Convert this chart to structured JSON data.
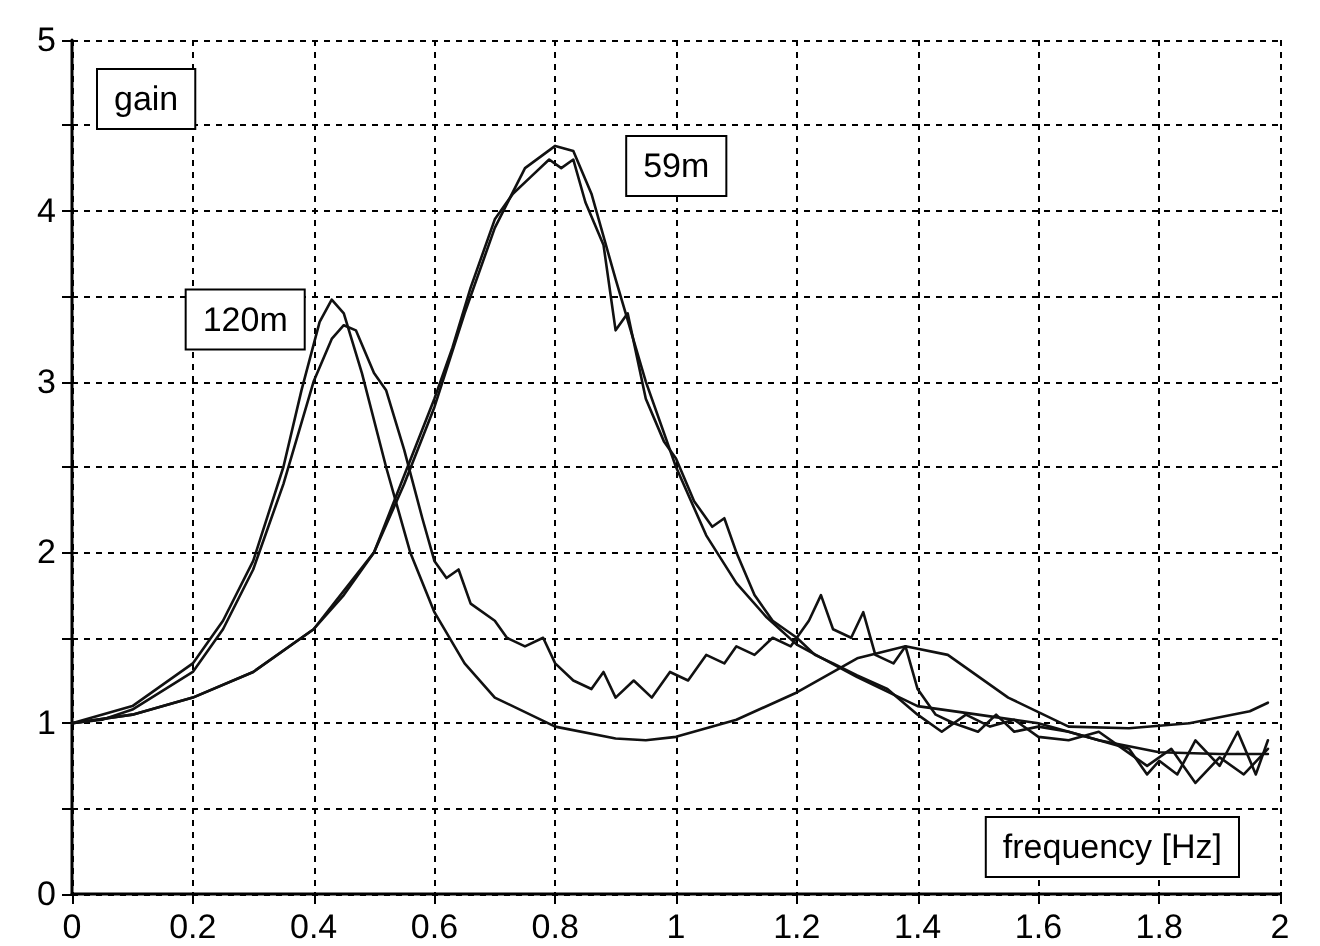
{
  "chart_data": {
    "type": "line",
    "xlabel": "frequency [Hz]",
    "ylabel": "gain",
    "xlim": [
      0,
      2
    ],
    "ylim": [
      0,
      5
    ],
    "xticks": [
      0,
      0.2,
      0.4,
      0.6,
      0.8,
      1,
      1.2,
      1.4,
      1.6,
      1.8,
      2
    ],
    "yticks": [
      0,
      {
        "value": 0.5,
        "label": null
      },
      1,
      {
        "value": 1.5,
        "label": null
      },
      2,
      {
        "value": 2.5,
        "label": null
      },
      3,
      {
        "value": 3.5,
        "label": null
      },
      4,
      {
        "value": 4.5,
        "label": null
      },
      5
    ],
    "grid": true,
    "marker": "none",
    "line_style": "solid",
    "annotations": [
      {
        "text": "120m",
        "x": 0.43,
        "y": 3.48
      },
      {
        "text": "59m",
        "x": 0.8,
        "y": 4.38
      }
    ],
    "series": [
      {
        "color": "#111111",
        "x": [
          0,
          0.1,
          0.2,
          0.25,
          0.3,
          0.35,
          0.38,
          0.41,
          0.43,
          0.45,
          0.48,
          0.52,
          0.56,
          0.6,
          0.65,
          0.7,
          0.8,
          0.9,
          0.95,
          1.0,
          1.1,
          1.2,
          1.3,
          1.38,
          1.45,
          1.55,
          1.65,
          1.75,
          1.85,
          1.95,
          1.98
        ],
        "values": [
          1.0,
          1.1,
          1.35,
          1.6,
          1.95,
          2.5,
          2.95,
          3.35,
          3.48,
          3.4,
          3.05,
          2.5,
          2.0,
          1.65,
          1.35,
          1.15,
          0.98,
          0.91,
          0.9,
          0.92,
          1.02,
          1.18,
          1.38,
          1.45,
          1.4,
          1.15,
          0.98,
          0.97,
          1.0,
          1.07,
          1.12
        ]
      },
      {
        "color": "#111111",
        "x": [
          0,
          0.05,
          0.1,
          0.2,
          0.25,
          0.3,
          0.35,
          0.4,
          0.43,
          0.45,
          0.47,
          0.5,
          0.52,
          0.55,
          0.58,
          0.6,
          0.62,
          0.64,
          0.66,
          0.7,
          0.72,
          0.75,
          0.78,
          0.8,
          0.83,
          0.86,
          0.88,
          0.9,
          0.93,
          0.96,
          0.99,
          1.02,
          1.05,
          1.08,
          1.1,
          1.13,
          1.16,
          1.19,
          1.22,
          1.24,
          1.26,
          1.29,
          1.31,
          1.33,
          1.36,
          1.38,
          1.4,
          1.43,
          1.46,
          1.5,
          1.53,
          1.56,
          1.6,
          1.65,
          1.7,
          1.75,
          1.78,
          1.8,
          1.83,
          1.86,
          1.9,
          1.93,
          1.96,
          1.98
        ],
        "values": [
          1.0,
          1.02,
          1.08,
          1.3,
          1.55,
          1.9,
          2.4,
          3.0,
          3.25,
          3.33,
          3.3,
          3.05,
          2.95,
          2.6,
          2.2,
          1.95,
          1.85,
          1.9,
          1.7,
          1.6,
          1.5,
          1.45,
          1.5,
          1.35,
          1.25,
          1.2,
          1.3,
          1.15,
          1.25,
          1.15,
          1.3,
          1.25,
          1.4,
          1.35,
          1.45,
          1.4,
          1.5,
          1.45,
          1.6,
          1.75,
          1.55,
          1.5,
          1.65,
          1.4,
          1.35,
          1.45,
          1.2,
          1.05,
          1.0,
          0.95,
          1.05,
          0.95,
          0.98,
          0.95,
          0.9,
          0.85,
          0.7,
          0.78,
          0.7,
          0.9,
          0.75,
          0.95,
          0.7,
          0.9
        ]
      },
      {
        "color": "#111111",
        "x": [
          0,
          0.1,
          0.2,
          0.3,
          0.4,
          0.45,
          0.5,
          0.55,
          0.6,
          0.65,
          0.7,
          0.75,
          0.8,
          0.83,
          0.86,
          0.9,
          0.95,
          1.0,
          1.05,
          1.1,
          1.15,
          1.2,
          1.3,
          1.4,
          1.5,
          1.6,
          1.7,
          1.8,
          1.9,
          1.98
        ],
        "values": [
          1.0,
          1.05,
          1.15,
          1.3,
          1.55,
          1.75,
          2.0,
          2.4,
          2.85,
          3.4,
          3.9,
          4.25,
          4.38,
          4.35,
          4.1,
          3.6,
          3.0,
          2.5,
          2.1,
          1.82,
          1.62,
          1.46,
          1.27,
          1.1,
          1.05,
          1.0,
          0.9,
          0.83,
          0.82,
          0.82
        ]
      },
      {
        "color": "#111111",
        "x": [
          0,
          0.1,
          0.2,
          0.3,
          0.4,
          0.5,
          0.55,
          0.6,
          0.63,
          0.66,
          0.7,
          0.73,
          0.76,
          0.79,
          0.81,
          0.83,
          0.85,
          0.88,
          0.9,
          0.92,
          0.95,
          0.98,
          1.0,
          1.03,
          1.06,
          1.08,
          1.1,
          1.13,
          1.16,
          1.2,
          1.23,
          1.26,
          1.3,
          1.35,
          1.4,
          1.44,
          1.48,
          1.52,
          1.56,
          1.6,
          1.65,
          1.7,
          1.74,
          1.78,
          1.82,
          1.86,
          1.9,
          1.94,
          1.98
        ],
        "values": [
          1.0,
          1.05,
          1.15,
          1.3,
          1.55,
          2.0,
          2.45,
          2.9,
          3.2,
          3.55,
          3.95,
          4.1,
          4.2,
          4.3,
          4.25,
          4.3,
          4.05,
          3.8,
          3.3,
          3.4,
          2.9,
          2.65,
          2.55,
          2.3,
          2.15,
          2.2,
          2.0,
          1.75,
          1.6,
          1.5,
          1.4,
          1.35,
          1.28,
          1.2,
          1.05,
          0.95,
          1.05,
          0.98,
          1.02,
          0.92,
          0.9,
          0.95,
          0.85,
          0.75,
          0.85,
          0.65,
          0.8,
          0.7,
          0.85
        ]
      }
    ]
  }
}
